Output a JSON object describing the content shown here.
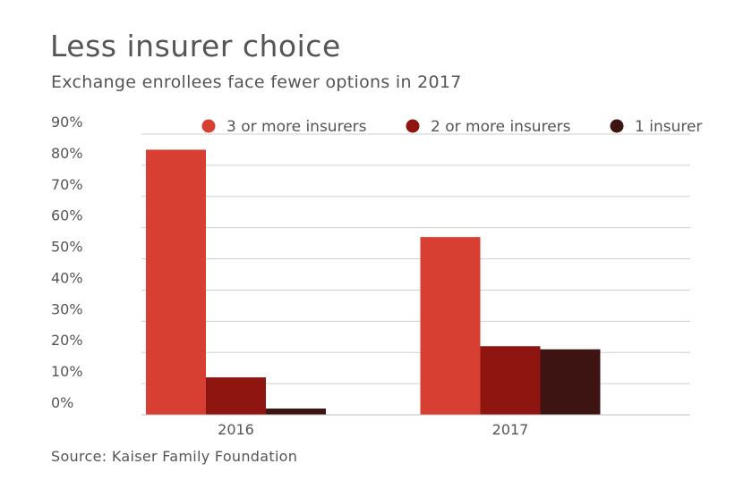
{
  "chart_data": {
    "type": "bar",
    "title": "Less insurer choice",
    "subtitle": "Exchange enrollees face fewer options in 2017",
    "source": "Source: Kaiser Family Foundation",
    "categories": [
      "2016",
      "2017"
    ],
    "series": [
      {
        "name": "3 or more insurers",
        "values": [
          85,
          57
        ],
        "color": "#d63f31"
      },
      {
        "name": "2 or more insurers",
        "values": [
          12,
          22
        ],
        "color": "#8e1510"
      },
      {
        "name": "1 insurer",
        "values": [
          2,
          21
        ],
        "color": "#3e1412"
      }
    ],
    "yticks": [
      "0%",
      "10%",
      "20%",
      "30%",
      "40%",
      "50%",
      "60%",
      "70%",
      "80%",
      "90%"
    ],
    "ylim": [
      0,
      90
    ],
    "grid": true,
    "legend_position": "top-right"
  }
}
